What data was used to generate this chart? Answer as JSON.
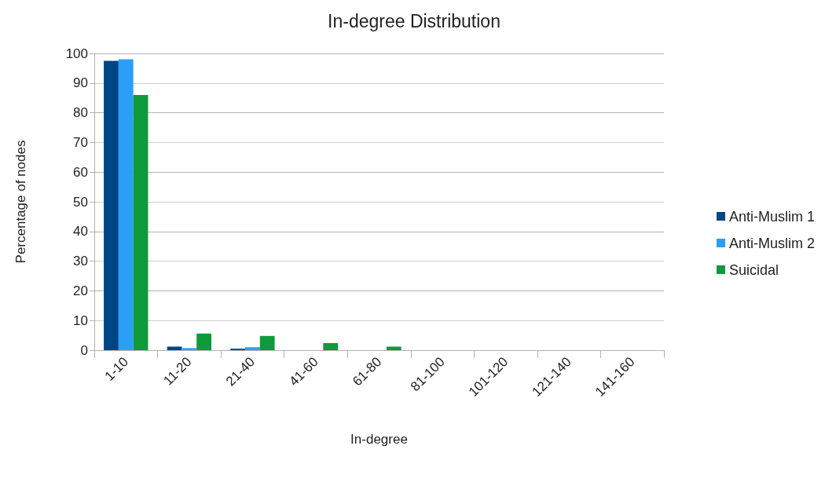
{
  "chart_data": {
    "type": "bar",
    "title": "In-degree Distribution",
    "xlabel": "In-degree",
    "ylabel": "Percentage of nodes",
    "categories": [
      "1-10",
      "11-20",
      "21-40",
      "41-60",
      "61-80",
      "81-100",
      "101-120",
      "121-140",
      "141-160"
    ],
    "series": [
      {
        "name": "Anti-Muslim 1",
        "color": "#004586",
        "values": [
          97.5,
          1.2,
          0.5,
          0,
          0,
          0,
          0,
          0,
          0
        ]
      },
      {
        "name": "Anti-Muslim 2",
        "color": "#2a9ff7",
        "values": [
          98,
          0.7,
          1,
          0,
          0,
          0,
          0,
          0,
          0
        ]
      },
      {
        "name": "Suicidal",
        "color": "#0f9a3c",
        "values": [
          86,
          5.6,
          4.8,
          2.4,
          1.2,
          0,
          0,
          0,
          0
        ]
      }
    ],
    "ylim": [
      0,
      100
    ],
    "yticks": [
      0,
      10,
      20,
      30,
      40,
      50,
      60,
      70,
      80,
      90,
      100
    ],
    "grid": "y",
    "legend": "right"
  }
}
